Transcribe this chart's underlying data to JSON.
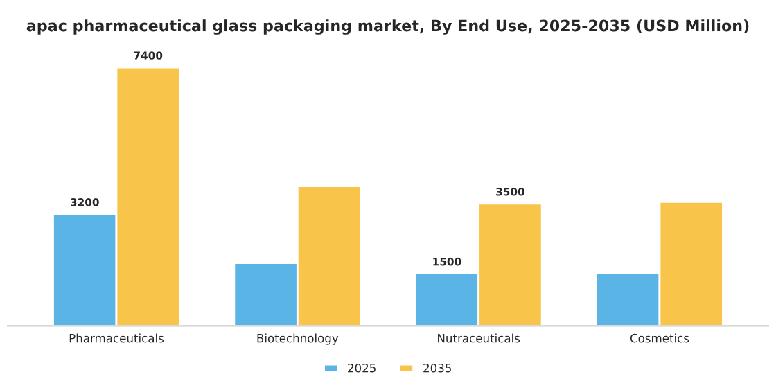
{
  "chart_data": {
    "type": "bar",
    "title": "apac pharmaceutical glass packaging market, By End Use, 2025-2035 (USD Million)",
    "categories": [
      "Pharmaceuticals",
      "Biotechnology",
      "Nutraceuticals",
      "Cosmetics"
    ],
    "series": [
      {
        "name": "2025",
        "color": "#5ab4e6",
        "values": [
          3200,
          1800,
          1500,
          1500
        ],
        "value_labels": [
          "3200",
          null,
          "1500",
          null
        ]
      },
      {
        "name": "2035",
        "color": "#f9c44a",
        "values": [
          7400,
          4000,
          3500,
          3550
        ],
        "value_labels": [
          "7400",
          null,
          "3500",
          null
        ]
      }
    ],
    "legend": "bottom",
    "grid": false
  }
}
